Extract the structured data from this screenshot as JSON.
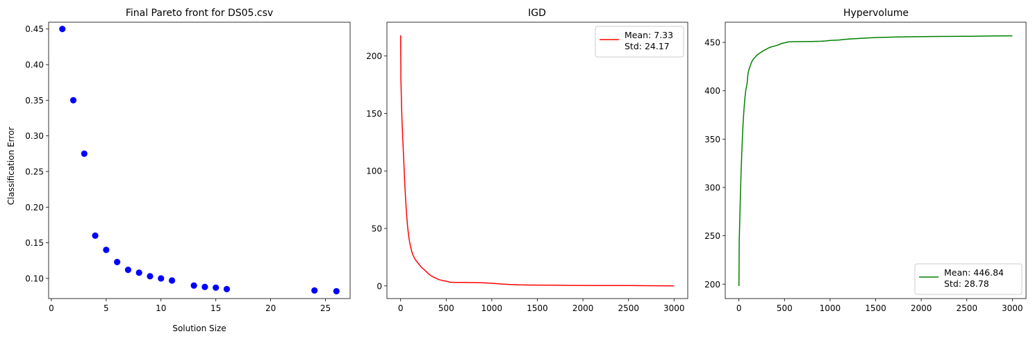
{
  "chart_data": [
    {
      "type": "scatter",
      "title": "Final Pareto front for DS05.csv",
      "xlabel": "Solution Size",
      "ylabel": "Classification Error",
      "xlim": [
        -0.25,
        27.25
      ],
      "ylim": [
        0.0717,
        0.4595
      ],
      "xticks": [
        0,
        5,
        10,
        15,
        20,
        25
      ],
      "yticks": [
        0.1,
        0.15,
        0.2,
        0.25,
        0.3,
        0.35,
        0.4,
        0.45
      ],
      "ytick_labels": [
        "0.10",
        "0.15",
        "0.20",
        "0.25",
        "0.30",
        "0.35",
        "0.40",
        "0.45"
      ],
      "marker_color": "#0000ff",
      "points": [
        {
          "x": 1,
          "y": 0.45
        },
        {
          "x": 2,
          "y": 0.35
        },
        {
          "x": 3,
          "y": 0.275
        },
        {
          "x": 4,
          "y": 0.16
        },
        {
          "x": 5,
          "y": 0.14
        },
        {
          "x": 6,
          "y": 0.123
        },
        {
          "x": 7,
          "y": 0.112
        },
        {
          "x": 8,
          "y": 0.108
        },
        {
          "x": 9,
          "y": 0.103
        },
        {
          "x": 10,
          "y": 0.1
        },
        {
          "x": 11,
          "y": 0.097
        },
        {
          "x": 13,
          "y": 0.09
        },
        {
          "x": 14,
          "y": 0.088
        },
        {
          "x": 15,
          "y": 0.087
        },
        {
          "x": 16,
          "y": 0.085
        },
        {
          "x": 24,
          "y": 0.083
        },
        {
          "x": 26,
          "y": 0.082
        }
      ]
    },
    {
      "type": "line",
      "title": "IGD",
      "xlabel": "",
      "ylabel": "",
      "xlim": [
        -150,
        3150
      ],
      "ylim": [
        -11,
        229.4
      ],
      "xticks": [
        0,
        500,
        1000,
        1500,
        2000,
        2500,
        3000
      ],
      "yticks": [
        0,
        50,
        100,
        150,
        200
      ],
      "color": "#ff0000",
      "legend": {
        "position": "upper right",
        "lines": [
          "Mean: 7.33",
          "Std: 24.17"
        ]
      },
      "series": [
        {
          "x": [
            0,
            3,
            8,
            15,
            25,
            35,
            45,
            55,
            65,
            75,
            85,
            95,
            110,
            125,
            140,
            160,
            180,
            200,
            230,
            260,
            300,
            340,
            380,
            420,
            470,
            520,
            540,
            600,
            700,
            800,
            900,
            1000,
            1050,
            1100,
            1200,
            1300,
            1400,
            1500,
            1700,
            1850,
            2000,
            2200,
            2500,
            2700,
            2900,
            3000
          ],
          "y": [
            218,
            180,
            165,
            145,
            125,
            108,
            90,
            75,
            63,
            53,
            46,
            40,
            34,
            29,
            26,
            23,
            21,
            19,
            16,
            14,
            11,
            8.5,
            7,
            5.5,
            4.5,
            3.8,
            3.2,
            3.1,
            3.0,
            2.9,
            2.7,
            2.3,
            2.0,
            1.7,
            1.2,
            0.9,
            0.8,
            0.7,
            0.6,
            0.5,
            0.4,
            0.35,
            0.3,
            0.2,
            0.1,
            0.05
          ]
        }
      ]
    },
    {
      "type": "line",
      "title": "Hypervolume",
      "xlabel": "",
      "ylabel": "",
      "xlim": [
        -150,
        3150
      ],
      "ylim": [
        185.1,
        470.9
      ],
      "xticks": [
        0,
        500,
        1000,
        1500,
        2000,
        2500,
        3000
      ],
      "yticks": [
        200,
        250,
        300,
        350,
        400,
        450
      ],
      "color": "#008000",
      "legend": {
        "position": "lower right",
        "lines": [
          "Mean: 446.84",
          "Std: 28.78"
        ]
      },
      "series": [
        {
          "x": [
            0,
            3,
            8,
            15,
            25,
            35,
            45,
            55,
            65,
            75,
            90,
            100,
            110,
            125,
            140,
            160,
            180,
            200,
            230,
            260,
            300,
            340,
            380,
            420,
            470,
            520,
            540,
            600,
            700,
            800,
            900,
            950,
            1000,
            1100,
            1150,
            1200,
            1300,
            1400,
            1500,
            1600,
            1700,
            1850,
            2000,
            2200,
            2500,
            2600,
            2800,
            3000
          ],
          "y": [
            198,
            245,
            260,
            290,
            320,
            345,
            365,
            380,
            392,
            400,
            408,
            418,
            422,
            426,
            430,
            433,
            435,
            437,
            439,
            441,
            443,
            445,
            446,
            447,
            449,
            450,
            450.5,
            450.8,
            450.9,
            451,
            451.2,
            451.5,
            452,
            452.5,
            453,
            453.5,
            454,
            454.5,
            455,
            455.3,
            455.5,
            455.8,
            456,
            456.2,
            456.3,
            456.5,
            456.7,
            456.8
          ]
        }
      ]
    }
  ]
}
